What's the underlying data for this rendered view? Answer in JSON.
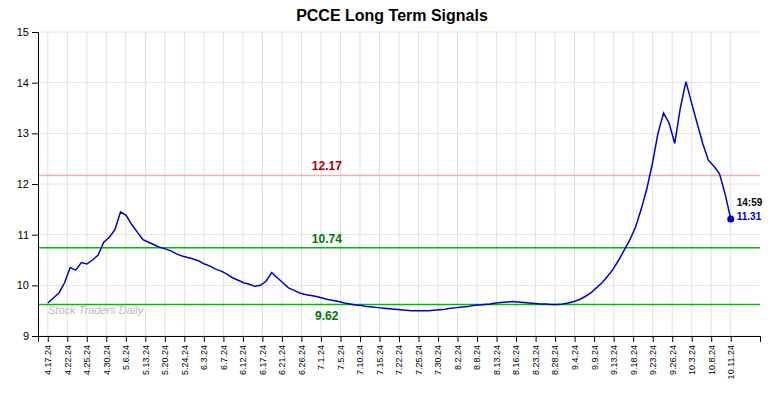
{
  "chart_data": {
    "type": "line",
    "title": "PCCE Long Term Signals",
    "x": [
      0,
      0.286885,
      0.57377,
      0.860656,
      1.147541,
      1.434426,
      1.721311,
      2.008197,
      2.295082,
      2.581967,
      2.868852,
      3.155738,
      3.442623,
      3.729508,
      4.016393,
      4.303279,
      4.590164,
      4.877049,
      5.163934,
      5.45082,
      5.737705,
      6.02459,
      6.311475,
      6.598361,
      6.885246,
      7.172131,
      7.459016,
      7.745902,
      8.032787,
      8.319672,
      8.606557,
      8.893443,
      9.180328,
      9.467213,
      9.754098,
      10.040984,
      10.327869,
      10.614754,
      10.901639,
      11.188525,
      11.47541,
      11.762295,
      12.04918,
      12.336066,
      12.622951,
      12.909836,
      13.196721,
      13.483607,
      13.770492,
      14.057377,
      14.344262,
      14.631148,
      14.918033,
      15.204918,
      15.491803,
      15.778689,
      16.065574,
      16.352459,
      16.639344,
      16.92623,
      17.213115,
      17.5,
      17.786885,
      18.07377,
      18.360656,
      18.647541,
      18.934426,
      19.221311,
      19.508197,
      19.795082,
      20.081967,
      20.368852,
      20.655738,
      20.942623,
      21.229508,
      21.516393,
      21.803279,
      22.090164,
      22.377049,
      22.663934,
      22.95082,
      23.237705,
      23.52459,
      23.811475,
      24.098361,
      24.385246,
      24.672131,
      24.959016,
      25.245902,
      25.532787,
      25.819672,
      26.106557,
      26.393443,
      26.680328,
      26.967213,
      27.254098,
      27.540984,
      27.827869,
      28.114754,
      28.401639,
      28.688525,
      28.97541,
      29.262295,
      29.54918,
      29.836066,
      30.122951,
      30.409836,
      30.696721,
      30.983607,
      31.270492,
      31.557377,
      31.844262,
      32.131148,
      32.418033,
      32.704918,
      32.991803,
      33.278689,
      33.565574,
      33.852459,
      34.139344,
      34.42623,
      34.713115,
      35
    ],
    "values": [
      9.65,
      9.75,
      9.85,
      10.05,
      10.35,
      10.3,
      10.45,
      10.42,
      10.5,
      10.6,
      10.85,
      10.95,
      11.1,
      11.45,
      11.38,
      11.2,
      11.05,
      10.9,
      10.85,
      10.8,
      10.75,
      10.72,
      10.68,
      10.62,
      10.58,
      10.55,
      10.52,
      10.48,
      10.42,
      10.38,
      10.32,
      10.28,
      10.22,
      10.15,
      10.1,
      10.05,
      10.02,
      9.98,
      10.0,
      10.08,
      10.25,
      10.15,
      10.05,
      9.95,
      9.9,
      9.85,
      9.82,
      9.8,
      9.78,
      9.75,
      9.72,
      9.7,
      9.68,
      9.65,
      9.63,
      9.61,
      9.6,
      9.58,
      9.57,
      9.56,
      9.55,
      9.54,
      9.53,
      9.52,
      9.51,
      9.5,
      9.5,
      9.5,
      9.5,
      9.51,
      9.52,
      9.53,
      9.55,
      9.56,
      9.57,
      9.58,
      9.6,
      9.61,
      9.62,
      9.63,
      9.65,
      9.66,
      9.67,
      9.68,
      9.67,
      9.66,
      9.65,
      9.64,
      9.63,
      9.63,
      9.62,
      9.62,
      9.63,
      9.65,
      9.68,
      9.72,
      9.78,
      9.85,
      9.95,
      10.05,
      10.18,
      10.32,
      10.5,
      10.7,
      10.9,
      11.15,
      11.5,
      11.9,
      12.4,
      13.0,
      13.4,
      13.2,
      12.8,
      13.5,
      14.02,
      13.6,
      13.2,
      12.8,
      12.47,
      12.35,
      12.2,
      11.8,
      11.31
    ],
    "color": "#0000cc",
    "xlim": [
      -0.5,
      36.5
    ],
    "xticks": [
      {
        "value": 0,
        "label": "4.17.24"
      },
      {
        "value": 1,
        "label": "4.22.24"
      },
      {
        "value": 2,
        "label": "4.25.24"
      },
      {
        "value": 3,
        "label": "4.30.24"
      },
      {
        "value": 4,
        "label": "5.6.24"
      },
      {
        "value": 5,
        "label": "5.13.24"
      },
      {
        "value": 6,
        "label": "5.20.24"
      },
      {
        "value": 7,
        "label": "5.24.24"
      },
      {
        "value": 8,
        "label": "6.3.24"
      },
      {
        "value": 9,
        "label": "6.7.24"
      },
      {
        "value": 10,
        "label": "6.12.24"
      },
      {
        "value": 11,
        "label": "6.17.24"
      },
      {
        "value": 12,
        "label": "6.21.24"
      },
      {
        "value": 13,
        "label": "6.26.24"
      },
      {
        "value": 14,
        "label": "7.1.24"
      },
      {
        "value": 15,
        "label": "7.5.24"
      },
      {
        "value": 16,
        "label": "7.10.24"
      },
      {
        "value": 17,
        "label": "7.15.24"
      },
      {
        "value": 18,
        "label": "7.22.24"
      },
      {
        "value": 19,
        "label": "7.25.24"
      },
      {
        "value": 20,
        "label": "7.30.24"
      },
      {
        "value": 21,
        "label": "8.2.24"
      },
      {
        "value": 22,
        "label": "8.8.24"
      },
      {
        "value": 23,
        "label": "8.13.24"
      },
      {
        "value": 24,
        "label": "8.16.24"
      },
      {
        "value": 25,
        "label": "8.23.24"
      },
      {
        "value": 26,
        "label": "8.28.24"
      },
      {
        "value": 27,
        "label": "9.4.24"
      },
      {
        "value": 28,
        "label": "9.9.24"
      },
      {
        "value": 29,
        "label": "9.13.24"
      },
      {
        "value": 30,
        "label": "9.18.24"
      },
      {
        "value": 31,
        "label": "9.23.24"
      },
      {
        "value": 32,
        "label": "9.26.24"
      },
      {
        "value": 33,
        "label": "10.3.24"
      },
      {
        "value": 34,
        "label": "10.8.24"
      },
      {
        "value": 35,
        "label": "10.11.24"
      }
    ],
    "ylim": [
      9.0,
      15.0
    ],
    "yticks": [
      9,
      10,
      11,
      12,
      13,
      14,
      15
    ],
    "grid": true,
    "hlines": [
      {
        "value": 12.17,
        "color": "#ffaaaa",
        "label_color": "#aa0000"
      },
      {
        "value": 10.74,
        "color": "#00bb00",
        "label_color": "#007700"
      },
      {
        "value": 9.62,
        "color": "#00bb00",
        "label_color": "#007700"
      }
    ],
    "last_point": {
      "marker": "circle",
      "time": "14:59",
      "value": 11.31
    },
    "watermark": "Stock Traders Daily"
  }
}
